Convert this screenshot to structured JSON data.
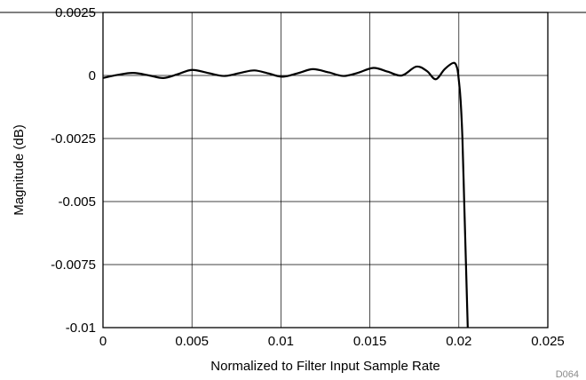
{
  "chart_data": {
    "type": "line",
    "title": "",
    "xlabel": "Normalized to Filter Input Sample Rate",
    "ylabel": "Magnitude (dB)",
    "xlim": [
      0,
      0.025
    ],
    "ylim": [
      -0.01,
      0.0025
    ],
    "x_ticks": [
      "0",
      "0.005",
      "0.01",
      "0.015",
      "0.02",
      "0.025"
    ],
    "x_tick_values": [
      0,
      0.005,
      0.01,
      0.015,
      0.02,
      0.025
    ],
    "y_ticks": [
      "0.0025",
      "0",
      "-0.0025",
      "-0.005",
      "-0.0075",
      "-0.01"
    ],
    "y_tick_values": [
      0.0025,
      0,
      -0.0025,
      -0.005,
      -0.0075,
      -0.01
    ],
    "grid": true,
    "figure_id": "D064",
    "series": [
      {
        "color": "#000000",
        "points": [
          [
            0.0,
            -0.0001
          ],
          [
            0.0008,
            2e-05
          ],
          [
            0.0017,
            0.0001
          ],
          [
            0.0026,
            0.0
          ],
          [
            0.0034,
            -0.0001
          ],
          [
            0.0042,
            5e-05
          ],
          [
            0.005,
            0.00022
          ],
          [
            0.0059,
            0.0001
          ],
          [
            0.0068,
            -2e-05
          ],
          [
            0.0077,
            0.0001
          ],
          [
            0.0085,
            0.0002
          ],
          [
            0.0093,
            8e-05
          ],
          [
            0.0101,
            -5e-05
          ],
          [
            0.011,
            0.0001
          ],
          [
            0.0118,
            0.00025
          ],
          [
            0.0127,
            0.00012
          ],
          [
            0.0135,
            -2e-05
          ],
          [
            0.0143,
            0.0001
          ],
          [
            0.0152,
            0.0003
          ],
          [
            0.016,
            0.00015
          ],
          [
            0.0168,
            0.0
          ],
          [
            0.0176,
            0.00035
          ],
          [
            0.0182,
            0.00018
          ],
          [
            0.0187,
            -0.00015
          ],
          [
            0.0192,
            0.00025
          ],
          [
            0.0197,
            0.0005
          ],
          [
            0.0199,
            0.0003
          ],
          [
            0.02,
            -0.0002
          ],
          [
            0.0201,
            -0.001
          ],
          [
            0.0202,
            -0.0025
          ],
          [
            0.0203,
            -0.005
          ],
          [
            0.0204,
            -0.0075
          ],
          [
            0.0205,
            -0.01
          ]
        ]
      }
    ]
  }
}
